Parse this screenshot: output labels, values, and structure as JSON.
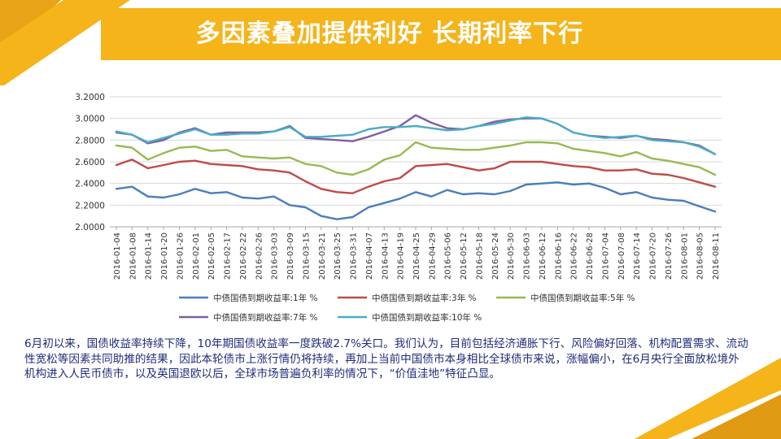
{
  "title": "多因素叠加提供利好 长期利率下行",
  "body_text": "6月初以来，国债收益率持续下降，10年期国债收益率一度跌破2.7%关口。我们认为，目前包括经济通胀下行、风险偏好回落、机构配置需求、流动性宽松等因素共同助推的结果，因此本轮债市上涨行情仍将持续，再加上当前中国债市本身相比全球债市来说，涨幅偏小，在6月央行全面放松境外机构进入人民币债市，以及英国退欧以后，全球市场普遍负利率的情况下，“价值洼地”特征凸显。",
  "colors": {
    "accent": "#f4b41a",
    "accent_dark": "#d9950f",
    "text": "#1f2d7a"
  },
  "chart_data": {
    "type": "line",
    "title": "",
    "xlabel": "",
    "ylabel": "",
    "ylim": [
      2.0,
      3.2
    ],
    "yticks": [
      "2.0000",
      "2.2000",
      "2.4000",
      "2.6000",
      "2.8000",
      "3.0000",
      "3.2000"
    ],
    "grid": "horizontal",
    "legend_position": "bottom",
    "x_tick_labels": [
      "2016-01-04",
      "2016-01-08",
      "2016-01-14",
      "2016-01-20",
      "2016-01-26",
      "2016-02-01",
      "2016-02-05",
      "2016-02-17",
      "2016-02-22",
      "2016-02-26",
      "2016-03-03",
      "2016-03-09",
      "2016-03-15",
      "2016-03-21",
      "2016-03-25",
      "2016-03-31",
      "2016-04-07",
      "2016-04-13",
      "2016-04-19",
      "2016-04-25",
      "2016-04-29",
      "2016-05-06",
      "2016-05-12",
      "2016-05-18",
      "2016-05-24",
      "2016-05-30",
      "2016-06-03",
      "2016-06-12",
      "2016-06-16",
      "2016-06-22",
      "2016-06-28",
      "2016-07-04",
      "2016-07-08",
      "2016-07-14",
      "2016-07-20",
      "2016-07-26",
      "2016-08-01",
      "2016-08-05",
      "2016-08-11"
    ],
    "series": [
      {
        "name": "中债国债到期收益率:1年 %",
        "color": "#4a7ebb",
        "values": [
          2.35,
          2.37,
          2.28,
          2.27,
          2.3,
          2.35,
          2.31,
          2.32,
          2.27,
          2.26,
          2.28,
          2.2,
          2.18,
          2.1,
          2.07,
          2.09,
          2.18,
          2.22,
          2.26,
          2.32,
          2.28,
          2.34,
          2.3,
          2.31,
          2.3,
          2.33,
          2.39,
          2.4,
          2.41,
          2.39,
          2.4,
          2.36,
          2.3,
          2.32,
          2.27,
          2.25,
          2.24,
          2.19,
          2.14
        ]
      },
      {
        "name": "中债国债到期收益率:3年 %",
        "color": "#be4b48",
        "values": [
          2.57,
          2.62,
          2.54,
          2.57,
          2.6,
          2.61,
          2.58,
          2.57,
          2.56,
          2.53,
          2.52,
          2.5,
          2.42,
          2.35,
          2.32,
          2.31,
          2.37,
          2.42,
          2.45,
          2.56,
          2.57,
          2.58,
          2.55,
          2.52,
          2.54,
          2.6,
          2.6,
          2.6,
          2.58,
          2.56,
          2.55,
          2.52,
          2.52,
          2.53,
          2.49,
          2.48,
          2.45,
          2.41,
          2.37
        ]
      },
      {
        "name": "中债国债到期收益率:5年 %",
        "color": "#98b954",
        "values": [
          2.75,
          2.73,
          2.62,
          2.68,
          2.73,
          2.74,
          2.7,
          2.71,
          2.65,
          2.64,
          2.63,
          2.64,
          2.58,
          2.56,
          2.5,
          2.48,
          2.53,
          2.62,
          2.66,
          2.78,
          2.73,
          2.72,
          2.71,
          2.71,
          2.73,
          2.75,
          2.78,
          2.78,
          2.77,
          2.72,
          2.7,
          2.68,
          2.65,
          2.69,
          2.63,
          2.61,
          2.58,
          2.55,
          2.48
        ]
      },
      {
        "name": "中债国债到期收益率:7年 %",
        "color": "#7e5fa3",
        "values": [
          2.87,
          2.85,
          2.77,
          2.8,
          2.87,
          2.91,
          2.85,
          2.87,
          2.87,
          2.87,
          2.88,
          2.93,
          2.82,
          2.81,
          2.8,
          2.79,
          2.83,
          2.88,
          2.93,
          3.03,
          2.96,
          2.91,
          2.9,
          2.93,
          2.97,
          2.99,
          3.0,
          3.0,
          2.95,
          2.87,
          2.84,
          2.83,
          2.82,
          2.84,
          2.81,
          2.8,
          2.78,
          2.75,
          2.67
        ]
      },
      {
        "name": "中债国债到期收益率:10年 %",
        "color": "#4bacc6",
        "values": [
          2.88,
          2.85,
          2.78,
          2.82,
          2.86,
          2.9,
          2.85,
          2.85,
          2.86,
          2.86,
          2.88,
          2.92,
          2.83,
          2.83,
          2.84,
          2.85,
          2.9,
          2.92,
          2.92,
          2.93,
          2.91,
          2.89,
          2.9,
          2.93,
          2.95,
          2.98,
          3.01,
          3.0,
          2.95,
          2.87,
          2.84,
          2.82,
          2.83,
          2.84,
          2.8,
          2.79,
          2.78,
          2.74,
          2.67
        ]
      }
    ]
  }
}
